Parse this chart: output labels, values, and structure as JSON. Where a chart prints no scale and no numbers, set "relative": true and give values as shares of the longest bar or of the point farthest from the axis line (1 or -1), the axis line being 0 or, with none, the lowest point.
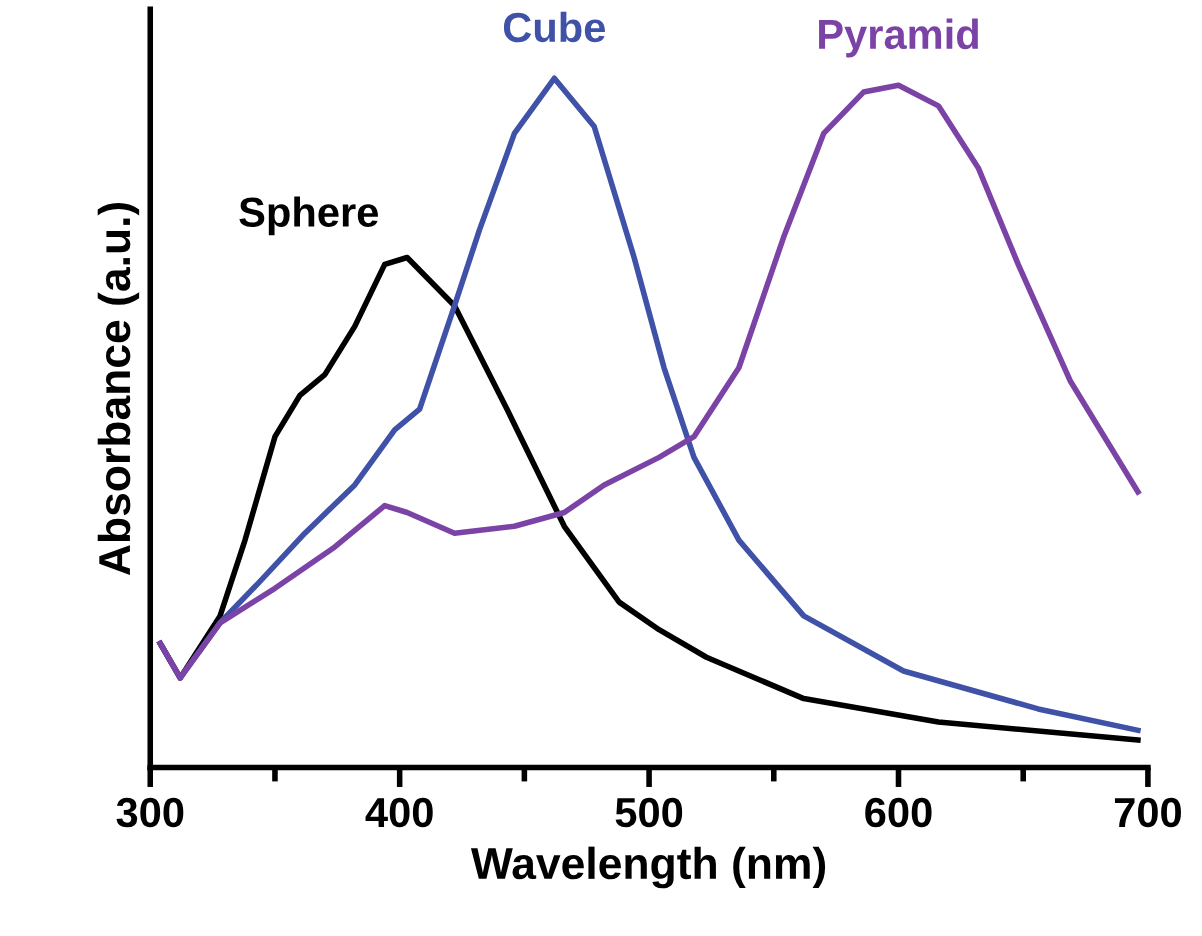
{
  "chart_data": {
    "type": "line",
    "relative": true,
    "xlabel": "Wavelength (nm)",
    "ylabel": "Absorbance (a.u.)",
    "xlim": [
      300,
      700
    ],
    "xticks": [
      300,
      400,
      500,
      600,
      700
    ],
    "grid": false,
    "legend": false,
    "marker": "none",
    "line_style": "solid",
    "series": [
      {
        "name": "Sphere",
        "color": "#000000",
        "x": [
          304,
          312,
          328,
          338,
          350,
          360,
          370,
          382,
          394,
          403,
          422,
          443,
          466,
          488,
          504,
          523,
          562,
          616,
          696
        ],
        "values": [
          0.18,
          0.13,
          0.22,
          0.33,
          0.48,
          0.54,
          0.57,
          0.64,
          0.73,
          0.74,
          0.67,
          0.52,
          0.35,
          0.24,
          0.2,
          0.16,
          0.1,
          0.066,
          0.04
        ]
      },
      {
        "name": "Cube",
        "color": "#3f52a8",
        "x": [
          304,
          312,
          328,
          344,
          362,
          382,
          398,
          408,
          422,
          432,
          446,
          462,
          478,
          494,
          506,
          518,
          536,
          562,
          602,
          656,
          696
        ],
        "values": [
          0.18,
          0.13,
          0.21,
          0.27,
          0.34,
          0.41,
          0.49,
          0.52,
          0.67,
          0.78,
          0.92,
          1.0,
          0.93,
          0.74,
          0.58,
          0.45,
          0.33,
          0.22,
          0.14,
          0.085,
          0.054
        ]
      },
      {
        "name": "Pyramid",
        "color": "#7b43a6",
        "x": [
          304,
          312,
          328,
          350,
          374,
          394,
          403,
          422,
          446,
          466,
          482,
          504,
          518,
          536,
          554,
          570,
          586,
          600,
          616,
          632,
          648,
          669,
          696
        ],
        "values": [
          0.18,
          0.13,
          0.21,
          0.26,
          0.32,
          0.38,
          0.37,
          0.34,
          0.35,
          0.37,
          0.41,
          0.45,
          0.48,
          0.58,
          0.77,
          0.92,
          0.98,
          0.99,
          0.96,
          0.87,
          0.73,
          0.56,
          0.4
        ]
      }
    ]
  }
}
